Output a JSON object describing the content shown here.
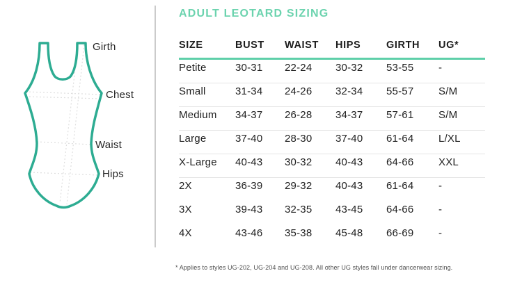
{
  "colors": {
    "title_mint": "#6bd3ae",
    "header_rule": "#5ecfa9",
    "leotard_stroke": "#2dac92",
    "guide_line": "#dedede",
    "row_divider": "#e5e5e5",
    "panel_divider": "#cbcbcb",
    "heading_text": "#1d1d1d",
    "body_text": "#1f1f1f",
    "footnote_text": "#4f4f4f"
  },
  "diagram": {
    "labels": [
      {
        "text": "Girth"
      },
      {
        "text": "Chest"
      },
      {
        "text": "Waist"
      },
      {
        "text": "Hips"
      }
    ]
  },
  "table": {
    "title": "ADULT LEOTARD SIZING",
    "columns": [
      "SIZE",
      "BUST",
      "WAIST",
      "HIPS",
      "GIRTH",
      "UG*"
    ],
    "rows": [
      {
        "size": "Petite",
        "bust": "30-31",
        "waist": "22-24",
        "hips": "30-32",
        "girth": "53-55",
        "ug": "-"
      },
      {
        "size": "Small",
        "bust": "31-34",
        "waist": "24-26",
        "hips": "32-34",
        "girth": "55-57",
        "ug": "S/M"
      },
      {
        "size": "Medium",
        "bust": "34-37",
        "waist": "26-28",
        "hips": "34-37",
        "girth": "57-61",
        "ug": "S/M"
      },
      {
        "size": "Large",
        "bust": "37-40",
        "waist": "28-30",
        "hips": "37-40",
        "girth": "61-64",
        "ug": "L/XL"
      },
      {
        "size": "X-Large",
        "bust": "40-43",
        "waist": "30-32",
        "hips": "40-43",
        "girth": "64-66",
        "ug": "XXL"
      },
      {
        "size": "2X",
        "bust": "36-39",
        "waist": "29-32",
        "hips": "40-43",
        "girth": "61-64",
        "ug": "-"
      },
      {
        "size": "3X",
        "bust": "39-43",
        "waist": "32-35",
        "hips": "43-45",
        "girth": "64-66",
        "ug": "-"
      },
      {
        "size": "4X",
        "bust": "43-46",
        "waist": "35-38",
        "hips": "45-48",
        "girth": "66-69",
        "ug": "-"
      }
    ]
  },
  "footnote": "* Applies to styles UG-202, UG-204 and UG-208. All other UG styles fall under dancerwear sizing."
}
